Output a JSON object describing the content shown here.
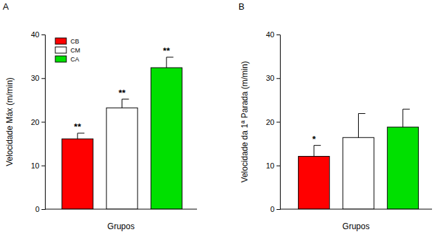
{
  "chart_data": [
    {
      "type": "bar",
      "title": "A",
      "ylabel": "Velocidade Máx (m/min)",
      "xlabel": "Grupos",
      "categories": [
        "CB",
        "CM",
        "CA"
      ],
      "values": [
        16.1,
        23.2,
        32.4
      ],
      "errors": [
        1.3,
        2.0,
        2.4
      ],
      "annotations": [
        "**",
        "**",
        "**"
      ],
      "colors": [
        "#ff0000",
        "#ffffff",
        "#00e000"
      ],
      "ylim": [
        0,
        40
      ],
      "yticks": [
        0,
        10,
        20,
        30,
        40
      ],
      "legend": "upper left",
      "tick_labels": "y"
    },
    {
      "type": "bar",
      "title": "B",
      "ylabel": "Velocidade da 1ª Parada (m/min)",
      "xlabel": "Grupos",
      "categories": [
        "CB",
        "CM",
        "CA"
      ],
      "values": [
        12.1,
        16.4,
        18.8
      ],
      "errors": [
        2.5,
        5.5,
        4.1
      ],
      "annotations": [
        "*",
        null,
        null
      ],
      "colors": [
        "#ff0000",
        "#ffffff",
        "#00e000"
      ],
      "ylim": [
        0,
        40
      ],
      "yticks": [
        0,
        10,
        20,
        30,
        40
      ],
      "tick_labels": "y"
    }
  ]
}
